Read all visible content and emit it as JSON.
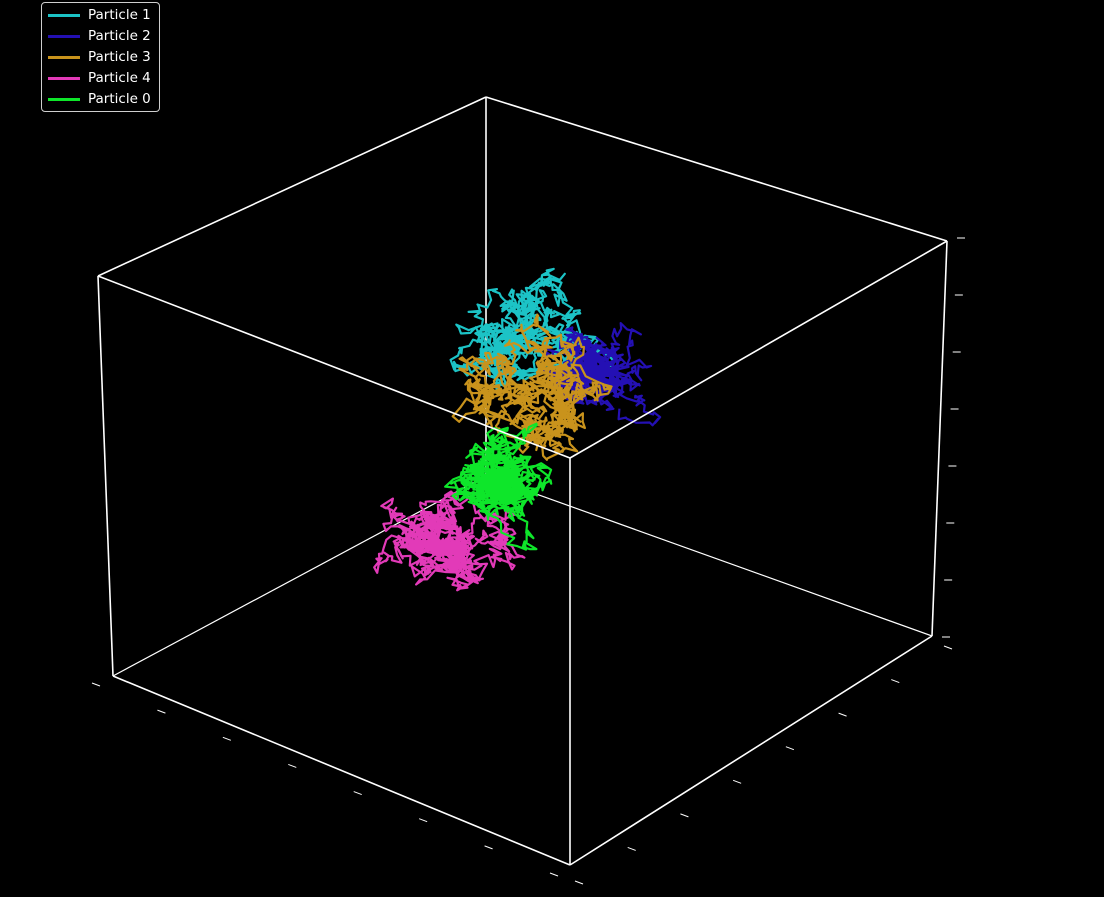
{
  "chart_data": {
    "type": "line",
    "projection": "3d",
    "title": "",
    "xlabel": "",
    "ylabel": "",
    "zlabel": "",
    "grid": false,
    "axis_pane": "transparent",
    "background": "#000000",
    "axis_color": "#ffffff",
    "legend_placement": "upper-left",
    "series": [
      {
        "name": "Particle 1",
        "color": "#1cc3c6",
        "seed": 11,
        "center": [
          0.3,
          0.3,
          0.65
        ],
        "spread": 0.55,
        "steps": 900
      },
      {
        "name": "Particle 2",
        "color": "#2410b4",
        "seed": 23,
        "center": [
          0.5,
          0.65,
          0.82
        ],
        "spread": 0.32,
        "steps": 700
      },
      {
        "name": "Particle 3",
        "color": "#c9931c",
        "seed": 37,
        "center": [
          0.4,
          0.45,
          0.65
        ],
        "spread": 0.55,
        "steps": 900
      },
      {
        "name": "Particle 4",
        "color": "#e23ab8",
        "seed": 51,
        "center": [
          0.55,
          0.35,
          0.25
        ],
        "spread": 0.55,
        "steps": 900
      },
      {
        "name": "Particle 0",
        "color": "#0ee62a",
        "seed": 67,
        "center": [
          0.55,
          0.5,
          0.5
        ],
        "spread": 0.4,
        "steps": 900
      }
    ]
  },
  "legend": {
    "items": [
      {
        "label": "Particle 1",
        "color": "#1cc3c6"
      },
      {
        "label": "Particle 2",
        "color": "#2410b4"
      },
      {
        "label": "Particle 3",
        "color": "#c9931c"
      },
      {
        "label": "Particle 4",
        "color": "#e23ab8"
      },
      {
        "label": "Particle 0",
        "color": "#0ee62a"
      }
    ]
  }
}
